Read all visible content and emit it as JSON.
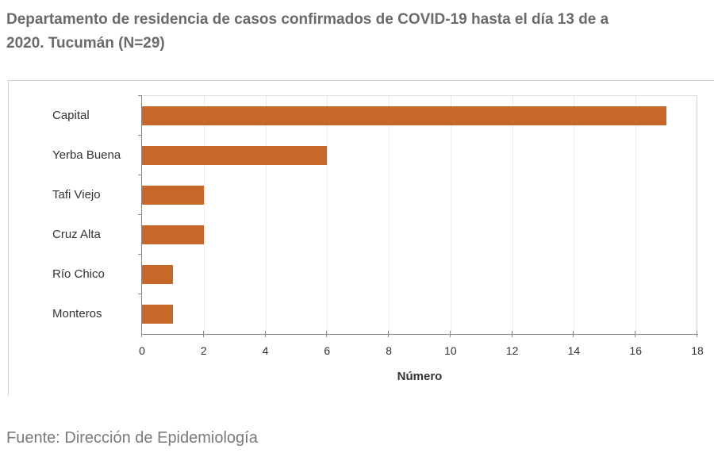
{
  "title_line1": "Departamento de residencia de casos confirmados de COVID-19 hasta el día 13 de a",
  "title_line2": "2020. Tucumán (N=29)",
  "source": "Fuente: Dirección de Epidemiología",
  "colors": {
    "bar": "#c8672a",
    "title": "#6a6a6a",
    "axis": "#8a8a8a"
  },
  "chart_data": {
    "type": "bar",
    "orientation": "horizontal",
    "title": "Departamento de residencia de casos confirmados de COVID-19 hasta el día 13 de a… 2020. Tucumán (N=29)",
    "categories": [
      "Capital",
      "Yerba Buena",
      "Tafi Viejo",
      "Cruz Alta",
      "Río Chico",
      "Monteros"
    ],
    "values": [
      17,
      6,
      2,
      2,
      1,
      1
    ],
    "xlabel": "Número",
    "ylabel": "",
    "xlim": [
      0,
      18
    ],
    "xticks": [
      "0",
      "2",
      "4",
      "6",
      "8",
      "10",
      "12",
      "14",
      "16",
      "18"
    ],
    "grid": true,
    "legend": "none"
  }
}
